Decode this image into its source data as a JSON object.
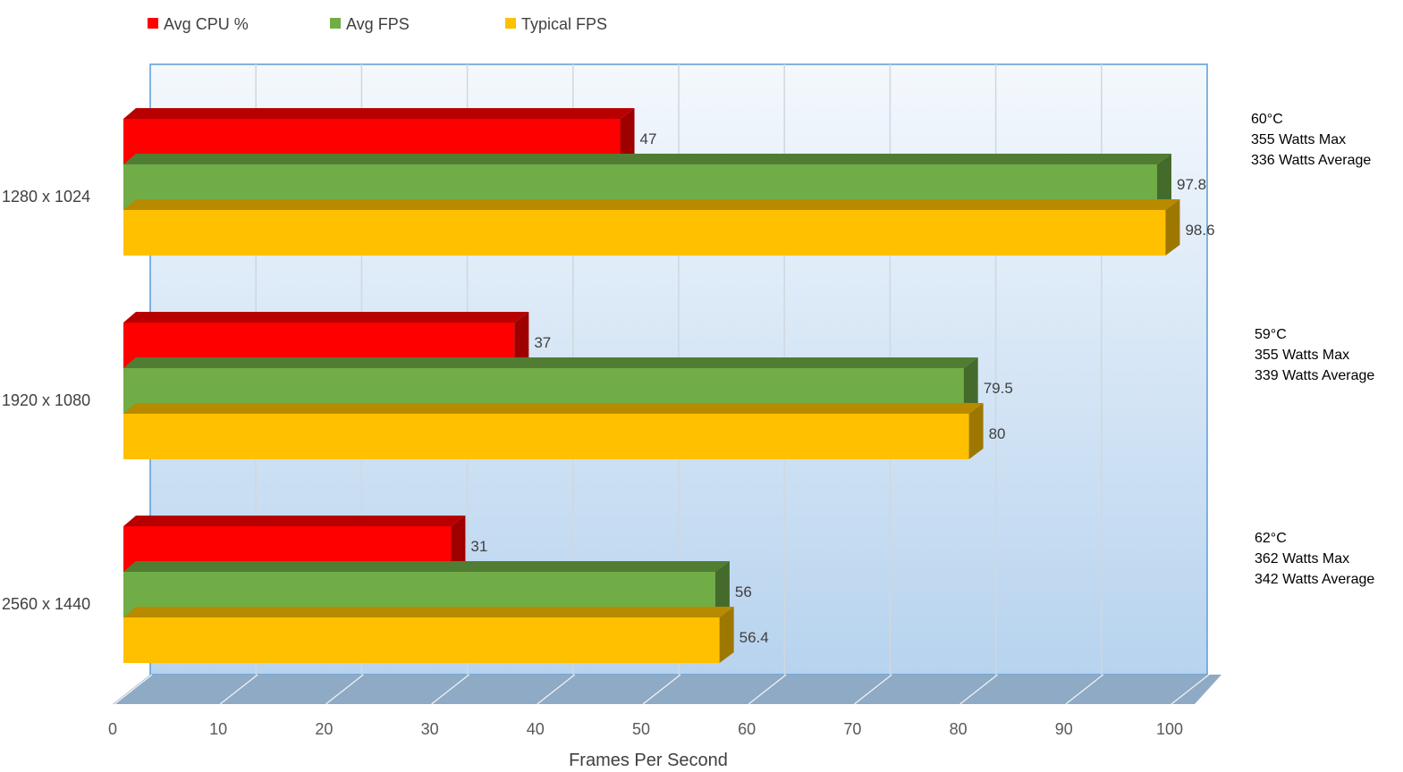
{
  "chart_data": {
    "type": "bar",
    "orientation": "horizontal",
    "style": "3d",
    "categories": [
      "1280 x 1024",
      "1920 x 1080",
      "2560 x 1440"
    ],
    "series": [
      {
        "name": "Avg CPU %",
        "color": "#ff0000",
        "values": [
          47,
          37,
          31
        ],
        "labels": [
          "47",
          "37",
          "31"
        ]
      },
      {
        "name": "Avg FPS",
        "color": "#70ad47",
        "values": [
          97.8,
          79.5,
          56
        ],
        "labels": [
          "97.8",
          "79.5",
          "56"
        ]
      },
      {
        "name": "Typical FPS",
        "color": "#ffc000",
        "values": [
          98.6,
          80,
          56.4
        ],
        "labels": [
          "98.6",
          "80",
          "56.4"
        ]
      }
    ],
    "xlim": [
      0,
      100
    ],
    "xticks": [
      "0",
      "10",
      "20",
      "30",
      "40",
      "50",
      "60",
      "70",
      "80",
      "90",
      "100"
    ],
    "xlabel": "Frames Per Second",
    "grid": true,
    "legend_position": "top",
    "annotations": [
      {
        "category": "1280 x 1024",
        "lines": [
          "60°C",
          "355 Watts Max",
          "336 Watts Average"
        ]
      },
      {
        "category": "1920 x 1080",
        "lines": [
          "59°C",
          "355 Watts Max",
          "339 Watts Average"
        ]
      },
      {
        "category": "2560 x 1440",
        "lines": [
          "62°C",
          "362 Watts Max",
          "342 Watts Average"
        ]
      }
    ]
  }
}
